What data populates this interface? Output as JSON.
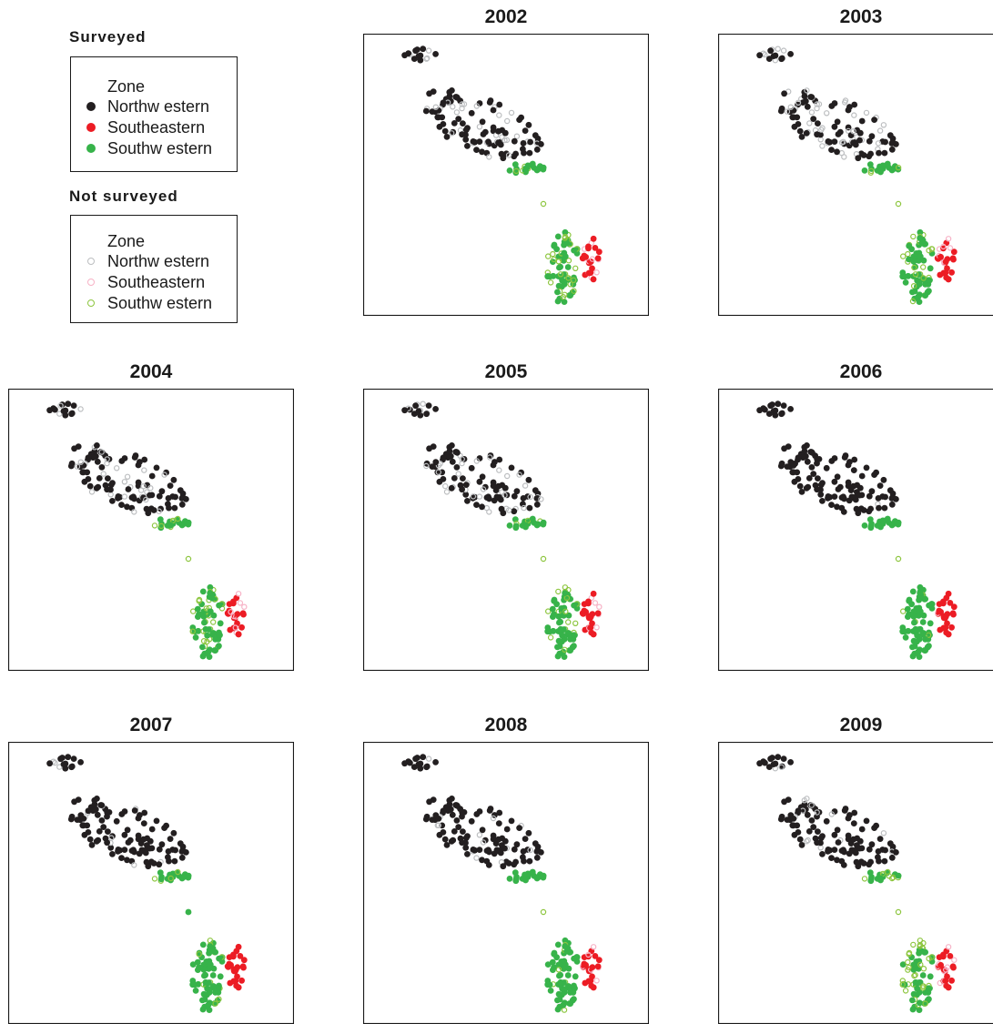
{
  "legend": {
    "surveyed": {
      "heading": "Surveyed",
      "zone_label": "Zone",
      "items": [
        {
          "label": "Northw estern",
          "color": "#231f20",
          "marker": "filled"
        },
        {
          "label": "Southeastern",
          "color": "#ec1c24",
          "marker": "filled"
        },
        {
          "label": "Southw estern",
          "color": "#37b34a",
          "marker": "filled"
        }
      ]
    },
    "not_surveyed": {
      "heading": "Not surveyed",
      "zone_label": "Zone",
      "items": [
        {
          "label": "Northw estern",
          "color": "#bcbec0",
          "marker": "hollow"
        },
        {
          "label": "Southeastern",
          "color": "#f7b2c6",
          "marker": "hollow"
        },
        {
          "label": "Southw estern",
          "color": "#8dc63f",
          "marker": "hollow"
        }
      ]
    }
  },
  "chart_data": {
    "type": "scatter",
    "panels": [
      {
        "title": "2002"
      },
      {
        "title": "2003"
      },
      {
        "title": "2004"
      },
      {
        "title": "2005"
      },
      {
        "title": "2006"
      },
      {
        "title": "2007"
      },
      {
        "title": "2008"
      },
      {
        "title": "2009"
      }
    ]
  }
}
